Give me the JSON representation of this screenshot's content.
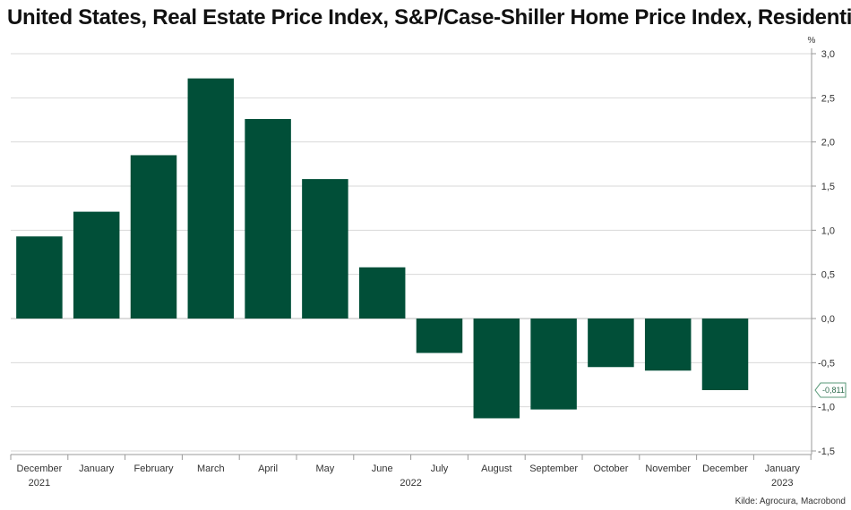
{
  "chart_data": {
    "type": "bar",
    "title": "United States, Real Estate Price Index, S&P/Case-Shiller Home Price Index, Residential",
    "unit": "%",
    "source": "Kilde: Agrocura, Macrobond",
    "categories": [
      "December",
      "January",
      "February",
      "March",
      "April",
      "May",
      "June",
      "July",
      "August",
      "September",
      "October",
      "November",
      "December",
      "January"
    ],
    "year_labels": [
      {
        "label": "2021",
        "category_index": 0
      },
      {
        "label": "2022",
        "category_index": 6.5
      },
      {
        "label": "2023",
        "category_index": 13
      }
    ],
    "values": [
      0.93,
      1.21,
      1.85,
      2.72,
      2.26,
      1.58,
      0.58,
      -0.39,
      -1.13,
      -1.03,
      -0.55,
      -0.59,
      -0.811,
      null
    ],
    "bar_color": "#014f38",
    "ylim": [
      -1.5,
      3.0
    ],
    "y_ticks": [
      3.0,
      2.5,
      2.0,
      1.5,
      1.0,
      0.5,
      0.0,
      -0.5,
      -1.0,
      -1.5
    ],
    "y_tick_labels": [
      "3,0",
      "2,5",
      "2,0",
      "1,5",
      "1,0",
      "0,5",
      "0,0",
      "-0,5",
      "-1,0",
      "-1,5"
    ],
    "y_axis_position": "right",
    "grid": true,
    "last_value_label": "-0,811",
    "xlabel": "",
    "ylabel": ""
  }
}
